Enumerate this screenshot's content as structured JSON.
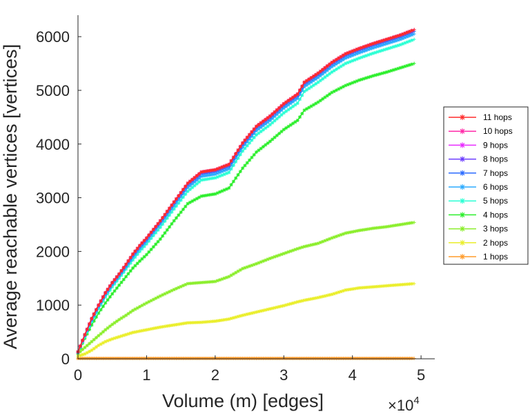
{
  "chart_data": {
    "type": "line",
    "title": "",
    "xlabel": "Volume (m) [edges]",
    "ylabel": "Average reachable vertices [vertices]",
    "xlim": [
      0,
      5.2
    ],
    "ylim": [
      0,
      6400
    ],
    "x_exponent_label": "×10",
    "x_exponent_power": "4",
    "x_ticks": [
      {
        "value": 0,
        "label": "0"
      },
      {
        "value": 1,
        "label": "1"
      },
      {
        "value": 2,
        "label": "2"
      },
      {
        "value": 3,
        "label": "3"
      },
      {
        "value": 4,
        "label": "4"
      },
      {
        "value": 5,
        "label": "5"
      }
    ],
    "y_ticks": [
      {
        "value": 0,
        "label": "0"
      },
      {
        "value": 1000,
        "label": "1000"
      },
      {
        "value": 2000,
        "label": "2000"
      },
      {
        "value": 3000,
        "label": "3000"
      },
      {
        "value": 4000,
        "label": "4000"
      },
      {
        "value": 5000,
        "label": "5000"
      },
      {
        "value": 6000,
        "label": "6000"
      }
    ],
    "legend_position": "right",
    "x": [
      0,
      0.1,
      0.2,
      0.3,
      0.4,
      0.5,
      0.6,
      0.7,
      0.8,
      0.9,
      1.0,
      1.2,
      1.4,
      1.6,
      1.8,
      2.0,
      2.2,
      2.4,
      2.6,
      2.8,
      3.0,
      3.2,
      3.3,
      3.5,
      3.7,
      3.9,
      4.1,
      4.3,
      4.5,
      4.7,
      4.9
    ],
    "series": [
      {
        "name": "11 hops",
        "color": "#ff2a2a",
        "values": [
          130,
          450,
          750,
          1000,
          1230,
          1420,
          1580,
          1760,
          1950,
          2110,
          2250,
          2570,
          2920,
          3270,
          3480,
          3520,
          3620,
          4020,
          4330,
          4520,
          4750,
          4930,
          5150,
          5320,
          5520,
          5680,
          5780,
          5870,
          5950,
          6030,
          6130
        ]
      },
      {
        "name": "10 hops",
        "color": "#ff2aa8",
        "values": [
          130,
          450,
          750,
          1000,
          1230,
          1420,
          1580,
          1760,
          1950,
          2110,
          2250,
          2570,
          2920,
          3270,
          3480,
          3520,
          3620,
          4020,
          4330,
          4520,
          4750,
          4930,
          5150,
          5320,
          5520,
          5680,
          5780,
          5870,
          5950,
          6030,
          6130
        ]
      },
      {
        "name": "9 hops",
        "color": "#e82aff",
        "values": [
          130,
          450,
          750,
          1000,
          1230,
          1420,
          1580,
          1760,
          1950,
          2110,
          2250,
          2570,
          2920,
          3270,
          3480,
          3520,
          3620,
          4020,
          4330,
          4520,
          4750,
          4930,
          5150,
          5320,
          5520,
          5680,
          5780,
          5870,
          5950,
          6030,
          6130
        ]
      },
      {
        "name": "8 hops",
        "color": "#6a3aff",
        "values": [
          130,
          450,
          750,
          1000,
          1230,
          1420,
          1580,
          1760,
          1950,
          2110,
          2250,
          2570,
          2920,
          3270,
          3480,
          3520,
          3620,
          4020,
          4330,
          4520,
          4750,
          4930,
          5150,
          5320,
          5520,
          5680,
          5780,
          5870,
          5950,
          6030,
          6130
        ]
      },
      {
        "name": "7 hops",
        "color": "#2a6aff",
        "values": [
          125,
          440,
          740,
          990,
          1220,
          1410,
          1570,
          1740,
          1930,
          2090,
          2230,
          2550,
          2900,
          3240,
          3450,
          3490,
          3590,
          3990,
          4300,
          4490,
          4720,
          4900,
          5120,
          5290,
          5490,
          5650,
          5750,
          5840,
          5920,
          6000,
          6100
        ]
      },
      {
        "name": "6 hops",
        "color": "#2aaaff",
        "values": [
          120,
          430,
          720,
          965,
          1190,
          1380,
          1540,
          1710,
          1890,
          2050,
          2190,
          2510,
          2850,
          3190,
          3400,
          3440,
          3540,
          3940,
          4250,
          4440,
          4670,
          4850,
          5070,
          5240,
          5440,
          5600,
          5700,
          5790,
          5870,
          5950,
          6050
        ]
      },
      {
        "name": "5 hops",
        "color": "#2affd4",
        "values": [
          115,
          410,
          690,
          930,
          1150,
          1340,
          1500,
          1670,
          1840,
          2000,
          2140,
          2450,
          2790,
          3120,
          3330,
          3370,
          3470,
          3870,
          4170,
          4360,
          4580,
          4760,
          4980,
          5150,
          5340,
          5500,
          5600,
          5690,
          5770,
          5850,
          5950
        ]
      },
      {
        "name": "4 hops",
        "color": "#2aee2a",
        "values": [
          110,
          380,
          630,
          850,
          1040,
          1210,
          1370,
          1530,
          1690,
          1820,
          1940,
          2230,
          2570,
          2890,
          3030,
          3070,
          3180,
          3550,
          3850,
          4050,
          4270,
          4440,
          4630,
          4780,
          4960,
          5090,
          5190,
          5270,
          5340,
          5420,
          5500
        ]
      },
      {
        "name": "3 hops",
        "color": "#8aee2a",
        "values": [
          100,
          210,
          320,
          430,
          540,
          640,
          730,
          810,
          900,
          970,
          1040,
          1170,
          1290,
          1400,
          1420,
          1440,
          1530,
          1680,
          1770,
          1870,
          1960,
          2050,
          2090,
          2150,
          2250,
          2340,
          2390,
          2430,
          2460,
          2500,
          2540
        ]
      },
      {
        "name": "2 hops",
        "color": "#eaee2a",
        "values": [
          50,
          90,
          160,
          250,
          320,
          370,
          410,
          450,
          490,
          515,
          540,
          590,
          630,
          670,
          680,
          700,
          740,
          810,
          870,
          930,
          990,
          1060,
          1090,
          1140,
          1200,
          1280,
          1320,
          1340,
          1360,
          1380,
          1400
        ]
      },
      {
        "name": "1 hops",
        "color": "#ff9b2a",
        "values": [
          8,
          8,
          8,
          8,
          8,
          8,
          8,
          8,
          8,
          8,
          8,
          8,
          8,
          8,
          8,
          8,
          8,
          8,
          8,
          8,
          8,
          8,
          8,
          8,
          8,
          8,
          8,
          8,
          8,
          8,
          8
        ]
      }
    ]
  }
}
